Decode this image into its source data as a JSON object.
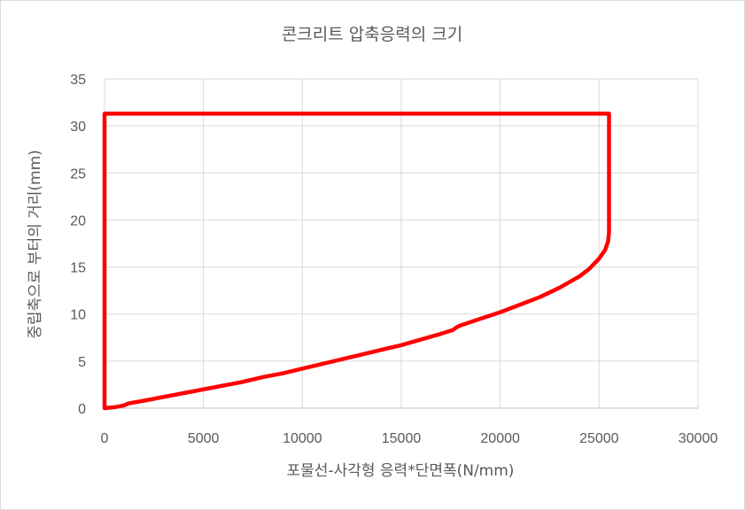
{
  "chart_data": {
    "type": "line",
    "title": "콘크리트 압축응력의 크기",
    "xlabel": "포물선-사각형 응력*단면폭(N/mm)",
    "ylabel": "중립축으로 부터의 거리(mm)",
    "xlim": [
      0,
      30000
    ],
    "ylim": [
      0,
      35
    ],
    "xticks": [
      "0",
      "5000",
      "10000",
      "15000",
      "20000",
      "25000",
      "30000"
    ],
    "yticks": [
      "0",
      "5",
      "10",
      "15",
      "20",
      "25",
      "30",
      "35"
    ],
    "grid": true,
    "legend": "none",
    "series": [
      {
        "color": "#ff0000",
        "x": [
          0,
          0,
          500,
          1000,
          1200,
          2000,
          3000,
          4000,
          5000,
          6000,
          7000,
          8000,
          9000,
          10000,
          11000,
          12000,
          13000,
          14000,
          15000,
          16000,
          17000,
          17600,
          17800,
          18000,
          19000,
          20000,
          21000,
          22000,
          23000,
          24000,
          24500,
          25000,
          25300,
          25450,
          25500,
          25500,
          25500,
          0
        ],
        "y": [
          31.3,
          0,
          0.1,
          0.3,
          0.5,
          0.8,
          1.2,
          1.6,
          2.0,
          2.4,
          2.8,
          3.3,
          3.7,
          4.2,
          4.7,
          5.2,
          5.7,
          6.2,
          6.7,
          7.3,
          7.9,
          8.3,
          8.6,
          8.8,
          9.5,
          10.2,
          11.0,
          11.8,
          12.8,
          14.0,
          14.8,
          15.9,
          16.8,
          17.7,
          18.7,
          25.0,
          31.3,
          31.3
        ]
      }
    ]
  }
}
